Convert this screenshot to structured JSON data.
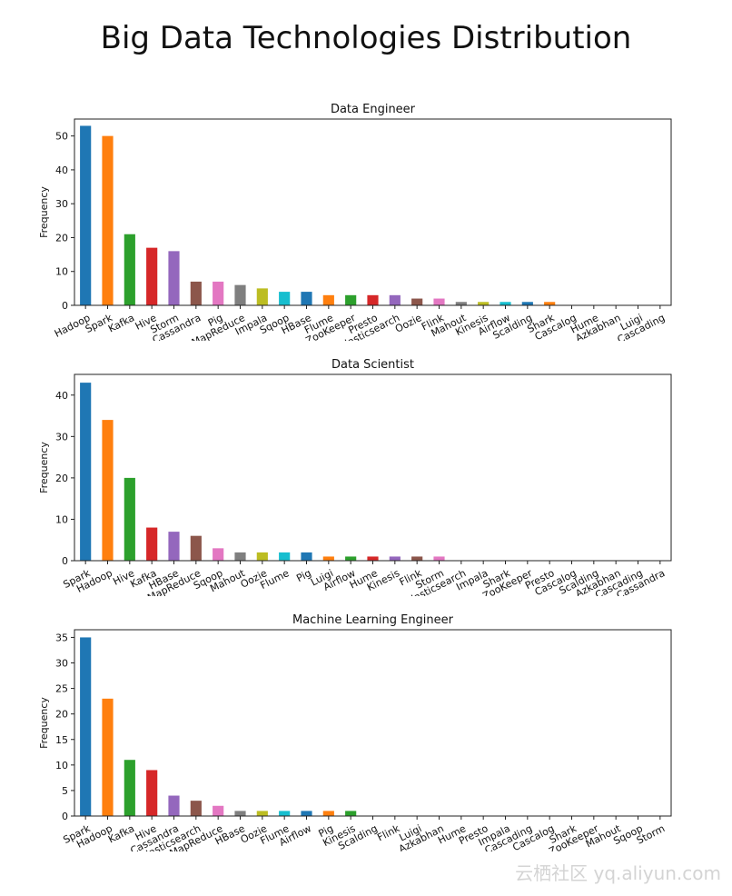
{
  "title": "Big Data Technologies Distribution",
  "watermark": "云栖社区 yq.aliyun.com",
  "palette": [
    "#1f77b4",
    "#ff7f0e",
    "#2ca02c",
    "#d62728",
    "#9467bd",
    "#8c564b",
    "#e377c2",
    "#7f7f7f",
    "#bcbd22",
    "#17becf"
  ],
  "chart_data": [
    {
      "type": "bar",
      "title": "Data Engineer",
      "xlabel": "",
      "ylabel": "Frequency",
      "ylim": [
        0,
        55
      ],
      "yticks": [
        0,
        10,
        20,
        30,
        40,
        50
      ],
      "categories": [
        "Hadoop",
        "Spark",
        "Kafka",
        "Hive",
        "Storm",
        "Cassandra",
        "Pig",
        "MapReduce",
        "Impala",
        "Sqoop",
        "HBase",
        "Flume",
        "ZooKeeper",
        "Presto",
        "Elasticsearch",
        "Oozie",
        "Flink",
        "Mahout",
        "Kinesis",
        "Airflow",
        "Scalding",
        "Shark",
        "Cascalog",
        "Hume",
        "Azkabhan",
        "Luigi",
        "Cascading"
      ],
      "values": [
        53,
        50,
        21,
        17,
        16,
        7,
        7,
        6,
        5,
        4,
        4,
        3,
        3,
        3,
        3,
        2,
        2,
        1,
        1,
        1,
        1,
        1,
        0,
        0,
        0,
        0,
        0
      ]
    },
    {
      "type": "bar",
      "title": "Data Scientist",
      "xlabel": "",
      "ylabel": "Frequency",
      "ylim": [
        0,
        45
      ],
      "yticks": [
        0,
        10,
        20,
        30,
        40
      ],
      "categories": [
        "Spark",
        "Hadoop",
        "Hive",
        "Kafka",
        "HBase",
        "MapReduce",
        "Sqoop",
        "Mahout",
        "Oozie",
        "Flume",
        "Pig",
        "Luigi",
        "Airflow",
        "Hume",
        "Kinesis",
        "Flink",
        "Storm",
        "Elasticsearch",
        "Impala",
        "Shark",
        "ZooKeeper",
        "Presto",
        "Cascalog",
        "Scalding",
        "Azkabhan",
        "Cascading",
        "Cassandra"
      ],
      "values": [
        43,
        34,
        20,
        8,
        7,
        6,
        3,
        2,
        2,
        2,
        2,
        1,
        1,
        1,
        1,
        1,
        1,
        0,
        0,
        0,
        0,
        0,
        0,
        0,
        0,
        0,
        0
      ]
    },
    {
      "type": "bar",
      "title": "Machine Learning Engineer",
      "xlabel": "",
      "ylabel": "Frequency",
      "ylim": [
        0,
        36.5
      ],
      "yticks": [
        0,
        5,
        10,
        15,
        20,
        25,
        30,
        35
      ],
      "categories": [
        "Spark",
        "Hadoop",
        "Kafka",
        "Hive",
        "Cassandra",
        "Elasticsearch",
        "MapReduce",
        "HBase",
        "Oozie",
        "Flume",
        "Airflow",
        "Pig",
        "Kinesis",
        "Scalding",
        "Flink",
        "Luigi",
        "Azkabhan",
        "Hume",
        "Presto",
        "Impala",
        "Cascading",
        "Cascalog",
        "Shark",
        "ZooKeeper",
        "Mahout",
        "Sqoop",
        "Storm"
      ],
      "values": [
        35,
        23,
        11,
        9,
        4,
        3,
        2,
        1,
        1,
        1,
        1,
        1,
        1,
        0,
        0,
        0,
        0,
        0,
        0,
        0,
        0,
        0,
        0,
        0,
        0,
        0,
        0
      ]
    }
  ]
}
